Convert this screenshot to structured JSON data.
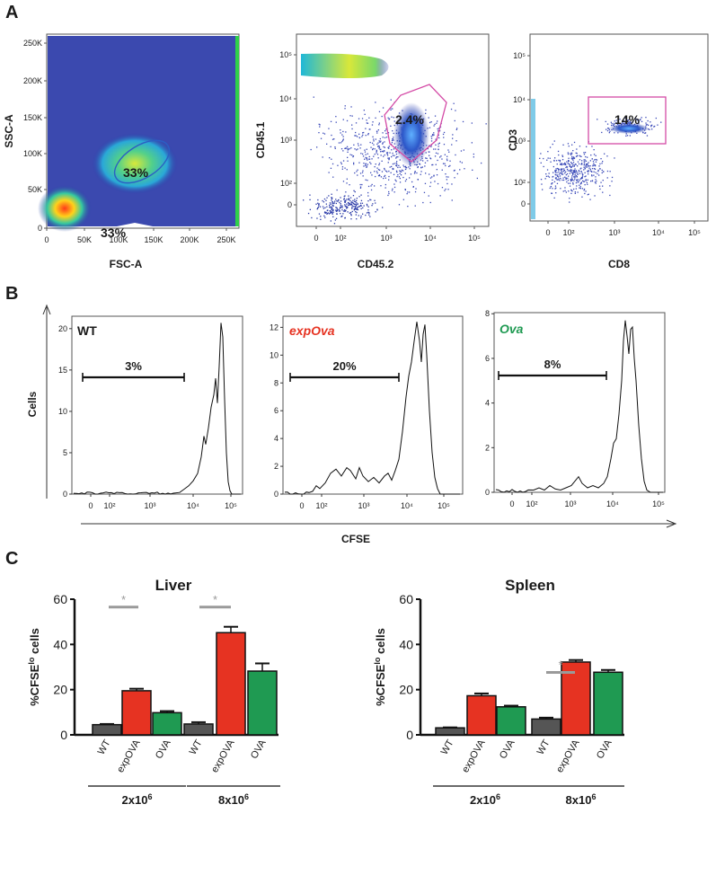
{
  "panel_labels": [
    "A",
    "B",
    "C"
  ],
  "colors": {
    "wt": "#555555",
    "expova": "#e63322",
    "ova": "#1f9a52",
    "gate": "#d44aa6",
    "density_bg": "#2a3aa8",
    "sig": "#9a9a9a"
  },
  "chart_data": [
    {
      "type": "scatter",
      "id": "flow-fsc-ssc",
      "xlabel": "FSC-A",
      "ylabel": "SSC-A",
      "x_ticks": [
        "0",
        "50K",
        "100K",
        "150K",
        "200K",
        "250K"
      ],
      "y_ticks": [
        "0",
        "50K",
        "100K",
        "150K",
        "200K",
        "250K"
      ],
      "xlim": [
        0,
        262144
      ],
      "ylim": [
        0,
        262144
      ],
      "gate_label": "33%",
      "gate_label_below": "33%"
    },
    {
      "type": "scatter",
      "id": "flow-cd45",
      "xlabel": "CD45.2",
      "ylabel": "CD45.1",
      "x_ticks": [
        "0",
        "10²",
        "10³",
        "10⁴",
        "10⁵"
      ],
      "y_ticks": [
        "0",
        "10²",
        "10³",
        "10⁴",
        "10⁵"
      ],
      "gate_label": "2.4%"
    },
    {
      "type": "scatter",
      "id": "flow-cd8-cd3",
      "xlabel": "CD8",
      "ylabel": "CD3",
      "x_ticks": [
        "0",
        "10²",
        "10³",
        "10⁴",
        "10⁵"
      ],
      "y_ticks": [
        "0",
        "10²",
        "10³",
        "10⁴",
        "10⁵"
      ],
      "gate_label": "14%"
    },
    {
      "type": "line",
      "id": "hist-wt",
      "title": "WT",
      "ylabel": "Cells",
      "xlabel": "CFSE",
      "y_ticks": [
        "0",
        "5",
        "10",
        "15",
        "20"
      ],
      "ylim": [
        0,
        21.5
      ],
      "x_ticks": [
        "0",
        "10²",
        "10³",
        "10⁴",
        "10⁵"
      ],
      "marker_label": "3%"
    },
    {
      "type": "line",
      "id": "hist-expova",
      "title": "expOva",
      "y_ticks": [
        "0",
        "2",
        "4",
        "6",
        "8",
        "10",
        "12"
      ],
      "ylim": [
        0,
        12.8
      ],
      "x_ticks": [
        "0",
        "10²",
        "10³",
        "10⁴",
        "10⁵"
      ],
      "marker_label": "20%"
    },
    {
      "type": "line",
      "id": "hist-ova",
      "title": "Ova",
      "y_ticks": [
        "0",
        "2",
        "4",
        "6",
        "8"
      ],
      "ylim": [
        0,
        8.05
      ],
      "x_ticks": [
        "0",
        "10²",
        "10³",
        "10⁴",
        "10⁵"
      ],
      "marker_label": "8%"
    },
    {
      "type": "bar",
      "id": "bar-liver",
      "title": "Liver",
      "ylabel": "%CFSE",
      "ylabel_sup": "lo",
      "ylabel_tail": " cells",
      "ylim": [
        0,
        60
      ],
      "y_ticks": [
        "0",
        "20",
        "40",
        "60"
      ],
      "categories": [
        "WT",
        "expOVA",
        "OVA",
        "WT",
        "expOVA",
        "OVA"
      ],
      "values": [
        4.5,
        19.5,
        9.8,
        4.8,
        45.2,
        28.2
      ],
      "errors": [
        0.3,
        0.9,
        0.7,
        0.8,
        2.6,
        3.4
      ],
      "groups": [
        {
          "label": "2x10",
          "sup": "6"
        },
        {
          "label": "8x10",
          "sup": "6"
        }
      ],
      "significance": [
        "*",
        "*"
      ]
    },
    {
      "type": "bar",
      "id": "bar-spleen",
      "title": "Spleen",
      "ylabel": "%CFSE",
      "ylabel_sup": "lo",
      "ylabel_tail": " cells",
      "ylim": [
        0,
        60
      ],
      "y_ticks": [
        "0",
        "20",
        "40",
        "60"
      ],
      "categories": [
        "WT",
        "expOVA",
        "OVA",
        "WT",
        "expOVA",
        "OVA"
      ],
      "values": [
        3.1,
        17.3,
        12.4,
        7.0,
        32.2,
        27.7
      ],
      "errors": [
        0.2,
        1.0,
        0.5,
        0.6,
        0.9,
        1.0
      ],
      "groups": [
        {
          "label": "2x10",
          "sup": "6"
        },
        {
          "label": "8x10",
          "sup": "6"
        }
      ],
      "significance": [
        "*"
      ]
    }
  ]
}
